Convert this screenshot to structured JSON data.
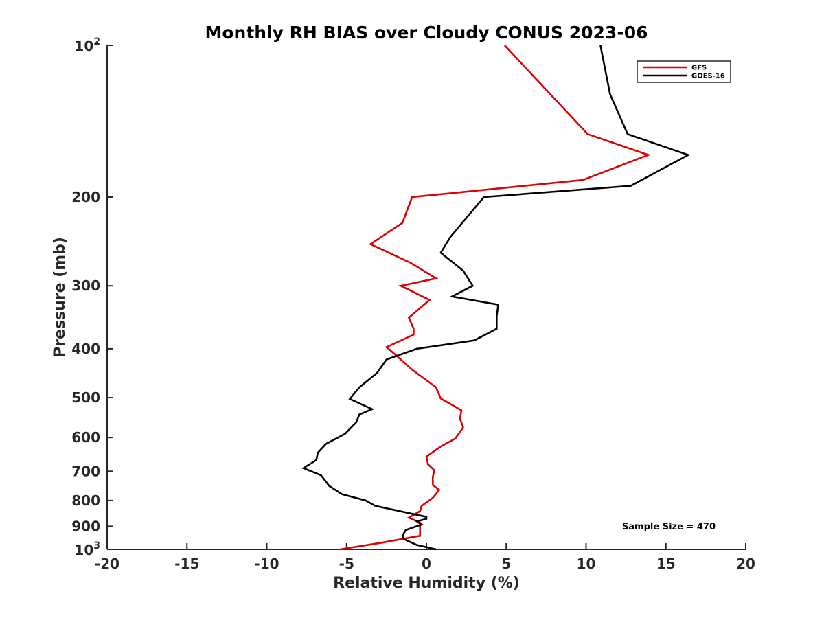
{
  "chart_data": {
    "type": "line",
    "title": "Monthly RH BIAS over Cloudy CONUS  2023-06",
    "xlabel": "Relative Humidity (%)",
    "ylabel": "Pressure (mb)",
    "xlim": [
      -20,
      20
    ],
    "ylim": [
      1000,
      100
    ],
    "y_scale": "log",
    "y_reversed": true,
    "grid": false,
    "legend_position": "top-right",
    "x_ticks": [
      "-20",
      "-15",
      "-10",
      "-5",
      "0",
      "5",
      "10",
      "15",
      "20"
    ],
    "y_ticks": [
      {
        "value": 100,
        "label": "",
        "base": "10",
        "exp": "2"
      },
      {
        "value": 200,
        "label": "200"
      },
      {
        "value": 300,
        "label": "300"
      },
      {
        "value": 400,
        "label": "400"
      },
      {
        "value": 500,
        "label": "500"
      },
      {
        "value": 600,
        "label": "600"
      },
      {
        "value": 700,
        "label": "700"
      },
      {
        "value": 800,
        "label": "800"
      },
      {
        "value": 900,
        "label": "900"
      },
      {
        "value": 1000,
        "label": "",
        "base": "10",
        "exp": "3"
      }
    ],
    "series": [
      {
        "name": "GFS",
        "color": "#e00000",
        "points": [
          [
            4.9,
            100
          ],
          [
            10.1,
            150
          ],
          [
            13.9,
            165
          ],
          [
            9.8,
            185
          ],
          [
            -0.9,
            200
          ],
          [
            -1.5,
            225
          ],
          [
            -3.5,
            248
          ],
          [
            -1.0,
            270
          ],
          [
            0.6,
            290
          ],
          [
            -1.6,
            300
          ],
          [
            0.2,
            320
          ],
          [
            -1.1,
            347
          ],
          [
            -0.8,
            365
          ],
          [
            -0.8,
            375
          ],
          [
            -2.5,
            397
          ],
          [
            -1.9,
            412
          ],
          [
            -0.9,
            440
          ],
          [
            0.6,
            477
          ],
          [
            0.9,
            502
          ],
          [
            2.2,
            530
          ],
          [
            2.1,
            550
          ],
          [
            2.3,
            573
          ],
          [
            1.8,
            603
          ],
          [
            0.9,
            625
          ],
          [
            0.0,
            655
          ],
          [
            0.1,
            678
          ],
          [
            0.5,
            697
          ],
          [
            0.4,
            717
          ],
          [
            0.4,
            745
          ],
          [
            0.8,
            762
          ],
          [
            0.4,
            790
          ],
          [
            -0.3,
            820
          ],
          [
            -0.4,
            840
          ],
          [
            -1.1,
            865
          ],
          [
            -0.4,
            885
          ],
          [
            -0.4,
            940
          ],
          [
            -2.8,
            970
          ],
          [
            -5.4,
            1000
          ]
        ]
      },
      {
        "name": "GOES-16",
        "color": "#000000",
        "points": [
          [
            10.9,
            100
          ],
          [
            11.5,
            125
          ],
          [
            12.6,
            150
          ],
          [
            16.4,
            165
          ],
          [
            12.8,
            190
          ],
          [
            3.6,
            200
          ],
          [
            1.5,
            240
          ],
          [
            0.9,
            258
          ],
          [
            2.3,
            280
          ],
          [
            2.9,
            300
          ],
          [
            1.6,
            315
          ],
          [
            4.5,
            327
          ],
          [
            4.4,
            345
          ],
          [
            4.4,
            365
          ],
          [
            3.0,
            385
          ],
          [
            -0.6,
            400
          ],
          [
            -2.5,
            420
          ],
          [
            -3.1,
            447
          ],
          [
            -4.2,
            477
          ],
          [
            -4.8,
            503
          ],
          [
            -3.4,
            527
          ],
          [
            -4.2,
            540
          ],
          [
            -4.4,
            560
          ],
          [
            -5.1,
            590
          ],
          [
            -6.3,
            618
          ],
          [
            -6.8,
            643
          ],
          [
            -6.9,
            665
          ],
          [
            -7.7,
            690
          ],
          [
            -6.6,
            713
          ],
          [
            -6.1,
            748
          ],
          [
            -5.3,
            777
          ],
          [
            -3.8,
            800
          ],
          [
            -3.2,
            820
          ],
          [
            0.0,
            862
          ],
          [
            0.0,
            870
          ],
          [
            -0.6,
            880
          ],
          [
            -0.3,
            893
          ],
          [
            -1.3,
            916
          ],
          [
            -1.5,
            940
          ],
          [
            -1.4,
            955
          ],
          [
            -0.6,
            980
          ],
          [
            0.6,
            1000
          ]
        ]
      }
    ],
    "annotations": [
      {
        "text": "Sample Size = 470",
        "position": "bottom-right"
      }
    ]
  }
}
